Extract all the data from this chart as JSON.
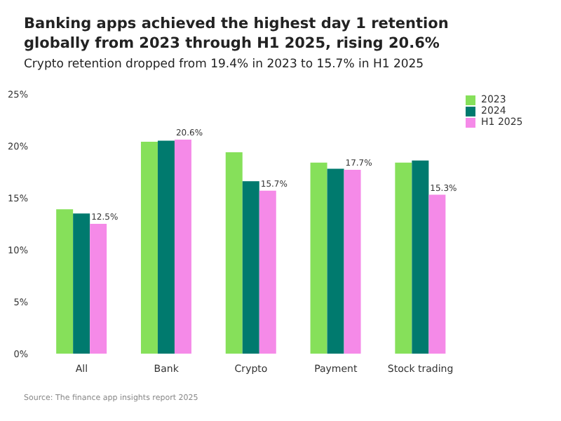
{
  "chart_data": {
    "type": "bar",
    "title": "Banking apps achieved the highest day 1 retention globally from 2023 through H1 2025, rising 20.6%",
    "subtitle": "Crypto retention dropped from 19.4% in 2023 to 15.7% in H1 2025",
    "categories": [
      "All",
      "Bank",
      "Crypto",
      "Payment",
      "Stock trading"
    ],
    "series": [
      {
        "name": "2023",
        "color": "#86e05a",
        "values": [
          13.9,
          20.4,
          19.4,
          18.4,
          18.4
        ]
      },
      {
        "name": "2024",
        "color": "#007a6e",
        "values": [
          13.5,
          20.5,
          16.6,
          17.8,
          18.6
        ]
      },
      {
        "name": "H1 2025",
        "color": "#f58ae8",
        "values": [
          12.5,
          20.6,
          15.7,
          17.7,
          15.3
        ],
        "value_labels": [
          "12.5%",
          "20.6%",
          "15.7%",
          "17.7%",
          "15.3%"
        ]
      }
    ],
    "ylim": [
      0,
      25
    ],
    "yticks": [
      {
        "value": 0,
        "label": "0%"
      },
      {
        "value": 5,
        "label": "5%"
      },
      {
        "value": 10,
        "label": "10%"
      },
      {
        "value": 15,
        "label": "15%"
      },
      {
        "value": 20,
        "label": "20%"
      },
      {
        "value": 25,
        "label": "25%"
      }
    ],
    "grid": false,
    "legend": "top right",
    "annotations": [
      "Source: The finance app insights report 2025"
    ]
  }
}
